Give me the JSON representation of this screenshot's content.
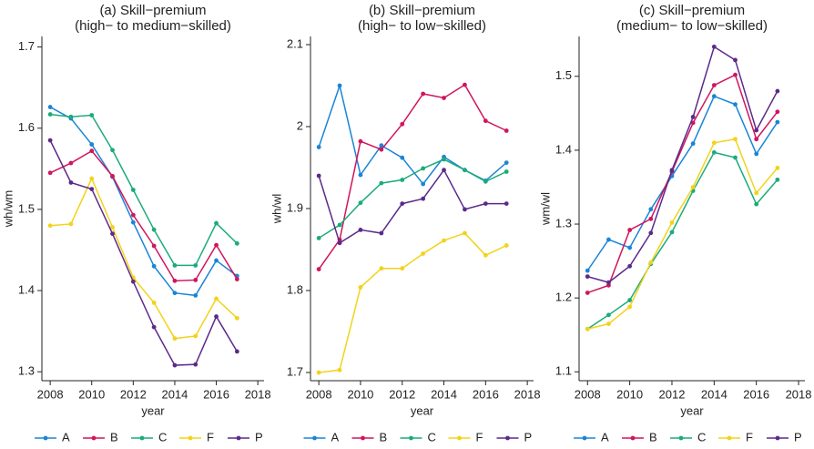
{
  "chart_data": [
    {
      "type": "line",
      "title": "(a) Skill−premium",
      "subtitle": "(high− to medium−skilled)",
      "xlabel": "year",
      "ylabel": "wh/wm",
      "x": [
        2008,
        2009,
        2010,
        2011,
        2012,
        2013,
        2014,
        2015,
        2016,
        2017
      ],
      "xlim": [
        2007.6,
        2018.3
      ],
      "xticks": [
        2008,
        2010,
        2012,
        2014,
        2016,
        2018
      ],
      "ylim": [
        1.289,
        1.713
      ],
      "yticks": [
        1.3,
        1.4,
        1.5,
        1.6,
        1.7
      ],
      "series": [
        {
          "name": "A",
          "color": "#1a85d6",
          "values": [
            1.626,
            1.612,
            1.58,
            1.54,
            1.484,
            1.43,
            1.397,
            1.394,
            1.437,
            1.418
          ]
        },
        {
          "name": "B",
          "color": "#d0155e",
          "values": [
            1.545,
            1.557,
            1.572,
            1.541,
            1.493,
            1.455,
            1.412,
            1.413,
            1.456,
            1.414
          ]
        },
        {
          "name": "C",
          "color": "#1bab7a",
          "values": [
            1.617,
            1.614,
            1.616,
            1.573,
            1.524,
            1.475,
            1.431,
            1.431,
            1.483,
            1.458
          ]
        },
        {
          "name": "F",
          "color": "#f2d31a",
          "values": [
            1.48,
            1.482,
            1.538,
            1.478,
            1.416,
            1.385,
            1.341,
            1.344,
            1.39,
            1.366
          ]
        },
        {
          "name": "P",
          "color": "#5c2a8a",
          "values": [
            1.585,
            1.533,
            1.525,
            1.47,
            1.411,
            1.355,
            1.308,
            1.309,
            1.368,
            1.325
          ]
        }
      ]
    },
    {
      "type": "line",
      "title": "(b) Skill−premium",
      "subtitle": "(high− to low−skilled)",
      "xlabel": "year",
      "ylabel": "wh/wl",
      "x": [
        2008,
        2009,
        2010,
        2011,
        2012,
        2013,
        2014,
        2015,
        2016,
        2017
      ],
      "xlim": [
        2007.6,
        2018.3
      ],
      "xticks": [
        2008,
        2010,
        2012,
        2014,
        2016,
        2018
      ],
      "ylim": [
        1.69,
        2.11
      ],
      "yticks": [
        1.7,
        1.8,
        1.9,
        2,
        2.1
      ],
      "series": [
        {
          "name": "A",
          "color": "#1a85d6",
          "values": [
            1.975,
            2.05,
            1.941,
            1.977,
            1.962,
            1.93,
            1.963,
            1.947,
            1.934,
            1.956
          ]
        },
        {
          "name": "B",
          "color": "#d0155e",
          "values": [
            1.826,
            1.862,
            1.982,
            1.972,
            2.003,
            2.04,
            2.035,
            2.051,
            2.007,
            1.995
          ]
        },
        {
          "name": "C",
          "color": "#1bab7a",
          "values": [
            1.864,
            1.88,
            1.907,
            1.931,
            1.935,
            1.949,
            1.96,
            1.947,
            1.933,
            1.945
          ]
        },
        {
          "name": "F",
          "color": "#f2d31a",
          "values": [
            1.7,
            1.703,
            1.804,
            1.827,
            1.827,
            1.845,
            1.861,
            1.87,
            1.843,
            1.855
          ]
        },
        {
          "name": "P",
          "color": "#5c2a8a",
          "values": [
            1.94,
            1.858,
            1.874,
            1.87,
            1.906,
            1.912,
            1.947,
            1.899,
            1.906,
            1.906
          ]
        }
      ]
    },
    {
      "type": "line",
      "title": "(c) Skill−premium",
      "subtitle": "(medium− to low−skilled)",
      "xlabel": "year",
      "ylabel": "wm/wl",
      "x": [
        2008,
        2009,
        2010,
        2011,
        2012,
        2013,
        2014,
        2015,
        2016,
        2017
      ],
      "xlim": [
        2007.6,
        2018.3
      ],
      "xticks": [
        2008,
        2010,
        2012,
        2014,
        2016,
        2018
      ],
      "ylim": [
        1.088,
        1.554
      ],
      "yticks": [
        1.1,
        1.2,
        1.3,
        1.4,
        1.5
      ],
      "series": [
        {
          "name": "A",
          "color": "#1a85d6",
          "values": [
            1.237,
            1.279,
            1.268,
            1.32,
            1.365,
            1.409,
            1.473,
            1.462,
            1.395,
            1.438
          ]
        },
        {
          "name": "B",
          "color": "#d0155e",
          "values": [
            1.207,
            1.217,
            1.292,
            1.307,
            1.371,
            1.437,
            1.488,
            1.502,
            1.415,
            1.452
          ]
        },
        {
          "name": "C",
          "color": "#1bab7a",
          "values": [
            1.158,
            1.177,
            1.197,
            1.246,
            1.289,
            1.345,
            1.397,
            1.39,
            1.327,
            1.36
          ]
        },
        {
          "name": "F",
          "color": "#f2d31a",
          "values": [
            1.158,
            1.165,
            1.188,
            1.248,
            1.302,
            1.35,
            1.41,
            1.415,
            1.342,
            1.376
          ]
        },
        {
          "name": "P",
          "color": "#5c2a8a",
          "values": [
            1.229,
            1.221,
            1.243,
            1.288,
            1.373,
            1.445,
            1.54,
            1.522,
            1.427,
            1.48
          ]
        }
      ]
    }
  ]
}
